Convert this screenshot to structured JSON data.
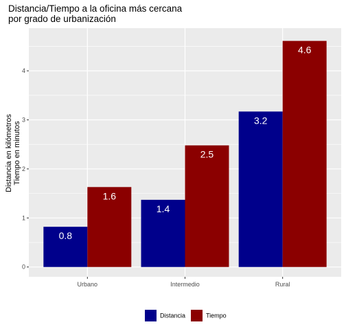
{
  "chart_data": {
    "type": "bar",
    "title_lines": [
      "Distancia/Tiempo a la oficina más cercana",
      "por grado de urbanización"
    ],
    "ylabel_lines": [
      "Distancia en kilómetros",
      "Tiempo en minutos"
    ],
    "xlabel": "",
    "categories": [
      "Urbano",
      "Intermedio",
      "Rural"
    ],
    "series": [
      {
        "name": "Distancia",
        "color": "#00008b",
        "values": [
          0.82,
          1.37,
          3.17
        ],
        "labels": [
          "0.8",
          "1.4",
          "3.2"
        ]
      },
      {
        "name": "Tiempo",
        "color": "#8b0000",
        "values": [
          1.63,
          2.48,
          4.61
        ],
        "labels": [
          "1.6",
          "2.5",
          "4.6"
        ]
      }
    ],
    "ylim": [
      -0.2,
      4.87
    ],
    "yticks": [
      0,
      1,
      2,
      3,
      4
    ],
    "ytick_labels": [
      "0",
      "1",
      "2",
      "3",
      "4"
    ],
    "grid": true,
    "panel_background": "#ebebeb",
    "legend_position": "bottom"
  }
}
